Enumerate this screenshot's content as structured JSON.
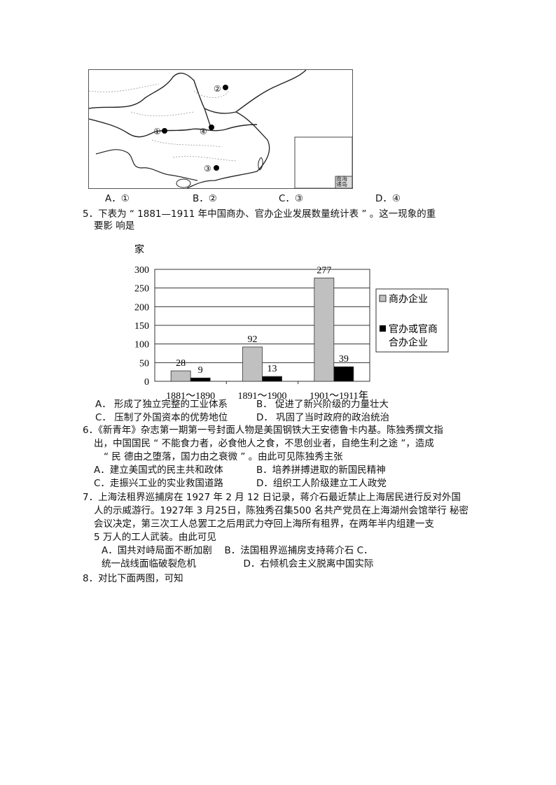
{
  "q4": {
    "options": [
      "A．①",
      "B．②",
      "C．③",
      "D．④"
    ],
    "map_markers": [
      "①",
      "②",
      "③",
      "④"
    ],
    "inset_label": "南海诸岛"
  },
  "q5": {
    "stem_line1": "5．下表为 “ 1881—1911 年中国商办、官办企业发展数量统计表 ” 。这一现象的重",
    "stem_line2": "要影 响是",
    "options": [
      "A． 形成了独立完整的工业体系",
      "B． 促进了新兴阶级的力量壮大",
      "C． 压制了外国资本的优势地位",
      "D． 巩固了当时政府的政治统治"
    ]
  },
  "chart_data": {
    "type": "bar",
    "ylabel": "家",
    "xlabel": "年",
    "categories": [
      "1881～1890",
      "1891～1900",
      "1901～1911"
    ],
    "series": [
      {
        "name": "商办企业",
        "values": [
          28,
          92,
          277
        ],
        "color": "#c0c0c0"
      },
      {
        "name": "官办或官商合办企业",
        "values": [
          9,
          13,
          39
        ],
        "color": "#000000"
      }
    ],
    "ylim": [
      0,
      300
    ],
    "yticks": [
      0,
      50,
      100,
      150,
      200,
      250,
      300
    ],
    "grid": true,
    "legend": "right",
    "data_labels": true
  },
  "q6": {
    "stem_line1": "6．《新青年》杂志第一期第一号封面人物是美国钢铁大王安德鲁卡内基。陈独秀撰文指",
    "stem_line2": "出，中国国民 “ 不能食力者，必食他人之食，不思创业者，自绝生利之途 ”，造成",
    "stem_line3": "“ 民 德由之堕落，国力由之衰微 ” 。由此可见陈独秀主张",
    "options": [
      "A．建立美国式的民主共和政体",
      "B．培养拼搏进取的新国民精神",
      "C．走振兴工业的实业救国道路",
      "D．组织工人阶级建立工人政党"
    ]
  },
  "q7": {
    "stem_line1": "7．上海法租界巡捕房在 1927 年 2 月 12 日记录，蒋介石最近禁止上海居民进行反对外国",
    "stem_line2": "人的示威游行。1927年 3 月25日，陈独秀召集500 名共产党员在上海湖州会馆举行 秘密",
    "stem_line3": "会议决定，第三次工人总罢工之后用武力夺回上海所有租界，在两年半内组建一支",
    "stem_line4": "5 万人的工人武装。由此可见",
    "options_line1": "A．国共对峙局面不断加剧　 B．法国租界巡捕房支持蒋介石 C．",
    "options_line2": "统一战线面临破裂危机　　　　　D．右倾机会主义脱离中国实际"
  },
  "q8": {
    "stem": "8．对比下面两图，可知"
  }
}
